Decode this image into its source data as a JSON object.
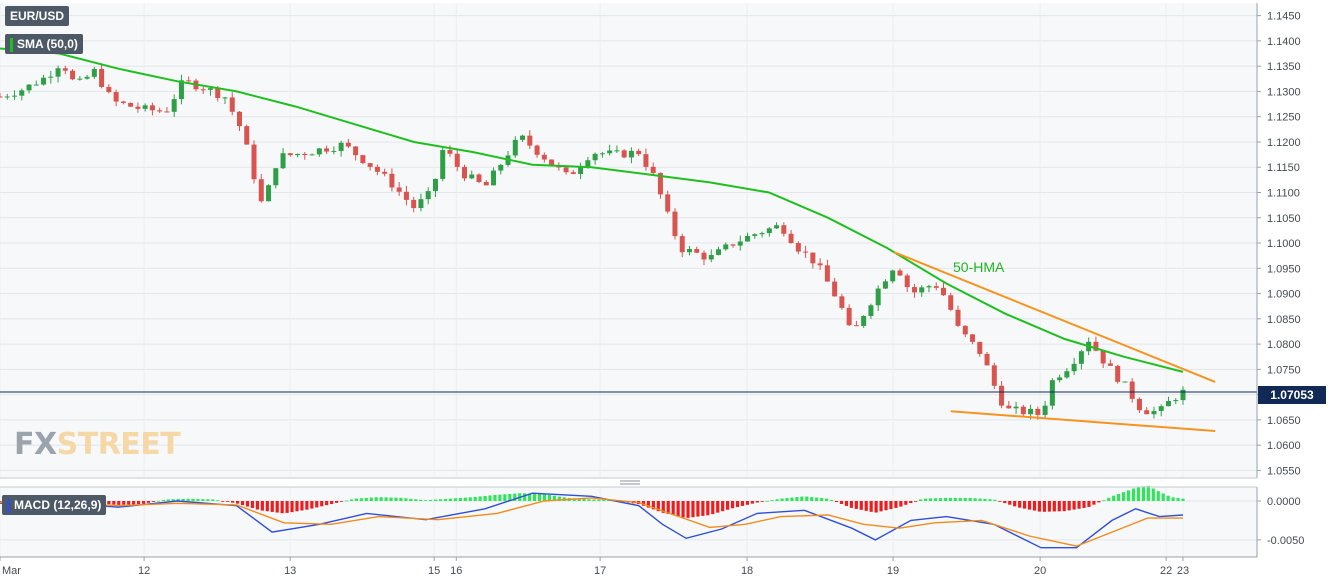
{
  "header": {
    "symbol": "EUR/USD",
    "indicator_label": "SMA (50,0)",
    "macd_label": "MACD (12,26,9)"
  },
  "current_price": "1.07053",
  "annotation": "50-HMA",
  "watermark": {
    "part1": "FX",
    "part2": "STREET"
  },
  "chart_data": [
    {
      "type": "candlestick",
      "title": "EUR/USD",
      "ylim": [
        1.0535,
        1.1475
      ],
      "y_ticks": [
        "1.1450",
        "1.1400",
        "1.1350",
        "1.1300",
        "1.1250",
        "1.1200",
        "1.1150",
        "1.1100",
        "1.1050",
        "1.1000",
        "1.0950",
        "1.0900",
        "1.0850",
        "1.0800",
        "1.0750",
        "1.0700",
        "1.0650",
        "1.0600",
        "1.0550"
      ],
      "x_tick_labels": [
        {
          "label": "Mar",
          "t": 0
        },
        {
          "label": "12",
          "t": 0.1218
        },
        {
          "label": "13",
          "t": 0.2453
        },
        {
          "label": "15",
          "t": 0.367
        },
        {
          "label": "16",
          "t": 0.3857
        },
        {
          "label": "17",
          "t": 0.5073
        },
        {
          "label": "18",
          "t": 0.6315
        },
        {
          "label": "19",
          "t": 0.7549
        },
        {
          "label": "20",
          "t": 0.8792
        },
        {
          "label": "22",
          "t": 0.9857
        },
        {
          "label": "23",
          "t": 1.0
        }
      ],
      "price_path": [
        [
          0,
          1.129
        ],
        [
          0.02,
          1.1305
        ],
        [
          0.04,
          1.133
        ],
        [
          0.052,
          1.136
        ],
        [
          0.064,
          1.131
        ],
        [
          0.08,
          1.134
        ],
        [
          0.095,
          1.128
        ],
        [
          0.12,
          1.1265
        ],
        [
          0.14,
          1.126
        ],
        [
          0.155,
          1.132
        ],
        [
          0.17,
          1.131
        ],
        [
          0.19,
          1.129
        ],
        [
          0.205,
          1.122
        ],
        [
          0.215,
          1.113
        ],
        [
          0.222,
          1.107
        ],
        [
          0.235,
          1.117
        ],
        [
          0.26,
          1.118
        ],
        [
          0.29,
          1.1195
        ],
        [
          0.31,
          1.116
        ],
        [
          0.33,
          1.112
        ],
        [
          0.35,
          1.107
        ],
        [
          0.365,
          1.11
        ],
        [
          0.375,
          1.119
        ],
        [
          0.39,
          1.114
        ],
        [
          0.41,
          1.111
        ],
        [
          0.43,
          1.118
        ],
        [
          0.44,
          1.121
        ],
        [
          0.46,
          1.117
        ],
        [
          0.48,
          1.113
        ],
        [
          0.5,
          1.118
        ],
        [
          0.52,
          1.1175
        ],
        [
          0.54,
          1.118
        ],
        [
          0.553,
          1.113
        ],
        [
          0.565,
          1.105
        ],
        [
          0.575,
          1.099
        ],
        [
          0.6,
          1.097
        ],
        [
          0.62,
          1.1
        ],
        [
          0.64,
          1.102
        ],
        [
          0.66,
          1.1035
        ],
        [
          0.675,
          1.099
        ],
        [
          0.69,
          1.096
        ],
        [
          0.71,
          1.088
        ],
        [
          0.72,
          1.0815
        ],
        [
          0.73,
          1.086
        ],
        [
          0.745,
          1.092
        ],
        [
          0.757,
          1.096
        ],
        [
          0.77,
          1.09
        ],
        [
          0.79,
          1.092
        ],
        [
          0.8,
          1.089
        ],
        [
          0.81,
          1.083
        ],
        [
          0.83,
          1.078
        ],
        [
          0.84,
          1.072
        ],
        [
          0.85,
          1.067
        ],
        [
          0.87,
          1.0665
        ],
        [
          0.88,
          1.066
        ],
        [
          0.89,
          1.073
        ],
        [
          0.905,
          1.076
        ],
        [
          0.92,
          1.081
        ],
        [
          0.935,
          1.076
        ],
        [
          0.95,
          1.072
        ],
        [
          0.965,
          1.067
        ],
        [
          0.98,
          1.0665
        ],
        [
          0.99,
          1.069
        ],
        [
          1.0,
          1.0705
        ]
      ],
      "sma_path": [
        [
          0,
          1.1385
        ],
        [
          0.05,
          1.1375
        ],
        [
          0.1,
          1.1345
        ],
        [
          0.15,
          1.132
        ],
        [
          0.2,
          1.13
        ],
        [
          0.25,
          1.127
        ],
        [
          0.3,
          1.1235
        ],
        [
          0.35,
          1.12
        ],
        [
          0.4,
          1.118
        ],
        [
          0.45,
          1.1155
        ],
        [
          0.5,
          1.115
        ],
        [
          0.55,
          1.1135
        ],
        [
          0.6,
          1.112
        ],
        [
          0.65,
          1.11
        ],
        [
          0.7,
          1.105
        ],
        [
          0.75,
          1.099
        ],
        [
          0.8,
          1.092
        ],
        [
          0.85,
          1.086
        ],
        [
          0.9,
          1.081
        ],
        [
          0.95,
          1.0775
        ],
        [
          1.0,
          1.0745
        ]
      ],
      "trendlines": [
        {
          "name": "upper",
          "color": "#f7931e",
          "points": [
            [
              0.7558,
              1.0982
            ],
            [
              1.0272,
              1.0725
            ]
          ]
        },
        {
          "name": "lower",
          "color": "#f7931e",
          "points": [
            [
              0.8037,
              1.0667
            ],
            [
              1.0272,
              1.0628
            ]
          ]
        }
      ],
      "last_price": 1.07053
    },
    {
      "type": "macd",
      "title": "MACD (12,26,9)",
      "ylim": [
        -0.0072,
        0.0018
      ],
      "y_ticks": [
        "0.0000",
        "-0.0050"
      ],
      "histogram": [
        [
          0.0,
          -0.0001
        ],
        [
          0.02,
          -0.0002
        ],
        [
          0.04,
          -0.0001
        ],
        [
          0.06,
          -0.0002
        ],
        [
          0.08,
          -0.0003
        ],
        [
          0.1,
          -0.0005
        ],
        [
          0.12,
          -0.0004
        ],
        [
          0.14,
          0.0002
        ],
        [
          0.16,
          0.0003
        ],
        [
          0.18,
          0.0002
        ],
        [
          0.2,
          -0.0003
        ],
        [
          0.22,
          -0.0012
        ],
        [
          0.24,
          -0.0016
        ],
        [
          0.26,
          -0.0011
        ],
        [
          0.28,
          -0.0004
        ],
        [
          0.3,
          0.0003
        ],
        [
          0.32,
          0.0005
        ],
        [
          0.34,
          0.0004
        ],
        [
          0.36,
          0.0001
        ],
        [
          0.38,
          0.0003
        ],
        [
          0.4,
          0.0005
        ],
        [
          0.42,
          0.0008
        ],
        [
          0.44,
          0.001
        ],
        [
          0.46,
          0.0009
        ],
        [
          0.48,
          0.0004
        ],
        [
          0.5,
          0.0002
        ],
        [
          0.52,
          0.0001
        ],
        [
          0.54,
          -0.0004
        ],
        [
          0.56,
          -0.0015
        ],
        [
          0.58,
          -0.0022
        ],
        [
          0.6,
          -0.0018
        ],
        [
          0.62,
          -0.0009
        ],
        [
          0.64,
          -0.0002
        ],
        [
          0.66,
          0.0003
        ],
        [
          0.68,
          0.0006
        ],
        [
          0.7,
          0.0003
        ],
        [
          0.72,
          -0.0009
        ],
        [
          0.74,
          -0.0015
        ],
        [
          0.76,
          -0.0008
        ],
        [
          0.78,
          0.0003
        ],
        [
          0.8,
          0.0004
        ],
        [
          0.82,
          0.0004
        ],
        [
          0.84,
          0.0002
        ],
        [
          0.86,
          -0.0008
        ],
        [
          0.88,
          -0.0014
        ],
        [
          0.9,
          -0.0013
        ],
        [
          0.92,
          -0.0008
        ],
        [
          0.94,
          0.0006
        ],
        [
          0.96,
          0.0017
        ],
        [
          0.97,
          0.002
        ],
        [
          0.98,
          0.0012
        ],
        [
          0.99,
          0.0005
        ],
        [
          1.0,
          0.0003
        ]
      ],
      "macd_line": [
        [
          0,
          -0.0003
        ],
        [
          0.05,
          -0.0002
        ],
        [
          0.1,
          -0.0008
        ],
        [
          0.15,
          0.0
        ],
        [
          0.2,
          -0.0006
        ],
        [
          0.23,
          -0.004
        ],
        [
          0.27,
          -0.003
        ],
        [
          0.31,
          -0.0016
        ],
        [
          0.36,
          -0.0024
        ],
        [
          0.41,
          -0.001
        ],
        [
          0.45,
          0.001
        ],
        [
          0.5,
          0.0006
        ],
        [
          0.54,
          -0.0006
        ],
        [
          0.56,
          -0.003
        ],
        [
          0.58,
          -0.0048
        ],
        [
          0.61,
          -0.0036
        ],
        [
          0.64,
          -0.0016
        ],
        [
          0.68,
          -0.0012
        ],
        [
          0.72,
          -0.0035
        ],
        [
          0.74,
          -0.005
        ],
        [
          0.77,
          -0.0025
        ],
        [
          0.8,
          -0.002
        ],
        [
          0.84,
          -0.003
        ],
        [
          0.88,
          -0.006
        ],
        [
          0.91,
          -0.006
        ],
        [
          0.94,
          -0.0025
        ],
        [
          0.96,
          -0.001
        ],
        [
          0.98,
          -0.002
        ],
        [
          1.0,
          -0.0018
        ]
      ],
      "signal_line": [
        [
          0,
          -0.0002
        ],
        [
          0.05,
          -0.0003
        ],
        [
          0.1,
          -0.0006
        ],
        [
          0.15,
          -0.0003
        ],
        [
          0.2,
          -0.0005
        ],
        [
          0.24,
          -0.0028
        ],
        [
          0.28,
          -0.003
        ],
        [
          0.32,
          -0.002
        ],
        [
          0.37,
          -0.0024
        ],
        [
          0.42,
          -0.0016
        ],
        [
          0.46,
          0.0
        ],
        [
          0.5,
          0.0004
        ],
        [
          0.54,
          -0.0002
        ],
        [
          0.57,
          -0.0018
        ],
        [
          0.6,
          -0.0034
        ],
        [
          0.63,
          -0.003
        ],
        [
          0.66,
          -0.002
        ],
        [
          0.7,
          -0.0018
        ],
        [
          0.73,
          -0.003
        ],
        [
          0.76,
          -0.0035
        ],
        [
          0.79,
          -0.0028
        ],
        [
          0.83,
          -0.0025
        ],
        [
          0.87,
          -0.0045
        ],
        [
          0.91,
          -0.0058
        ],
        [
          0.94,
          -0.004
        ],
        [
          0.97,
          -0.0022
        ],
        [
          1.0,
          -0.0022
        ]
      ]
    }
  ]
}
